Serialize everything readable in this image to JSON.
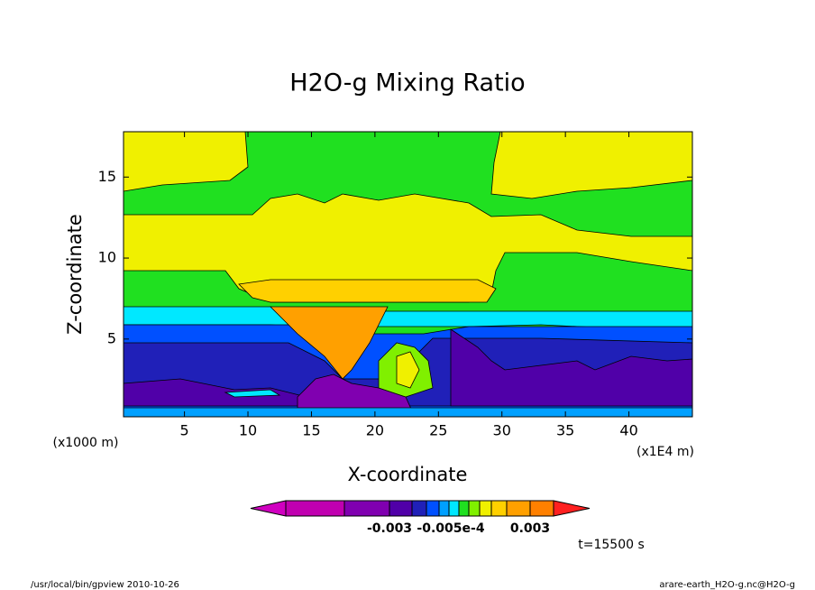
{
  "chart_data": {
    "type": "contour",
    "title": "H2O-g Mixing Ratio",
    "x_label": "X-coordinate",
    "y_label": "Z-coordinate",
    "x_unit": "(x1000 m)",
    "x_unit_right": "(x1E4 m)",
    "xlim": [
      0.2,
      45
    ],
    "ylim": [
      0.2,
      17.8
    ],
    "xticks": [
      5,
      10,
      15,
      20,
      25,
      30,
      35,
      40
    ],
    "yticks": [
      5,
      10,
      15
    ],
    "colorbar_colors": [
      "#d000c0",
      "#c000b0",
      "#8000b0",
      "#5000a8",
      "#2020b8",
      "#0050ff",
      "#00a0ff",
      "#00e8ff",
      "#20e020",
      "#80f000",
      "#f0f000",
      "#ffd000",
      "#ffa000",
      "#ff8000",
      "#ff2020"
    ],
    "colorbar_labels": [
      "-0.003",
      "-0.005e-4",
      "0.003"
    ],
    "time_label": "t=15500 s",
    "footer_left": "/usr/local/bin/gpview  2010-10-26",
    "footer_right": "arare-earth_H2O-g.nc@H2O-g"
  }
}
